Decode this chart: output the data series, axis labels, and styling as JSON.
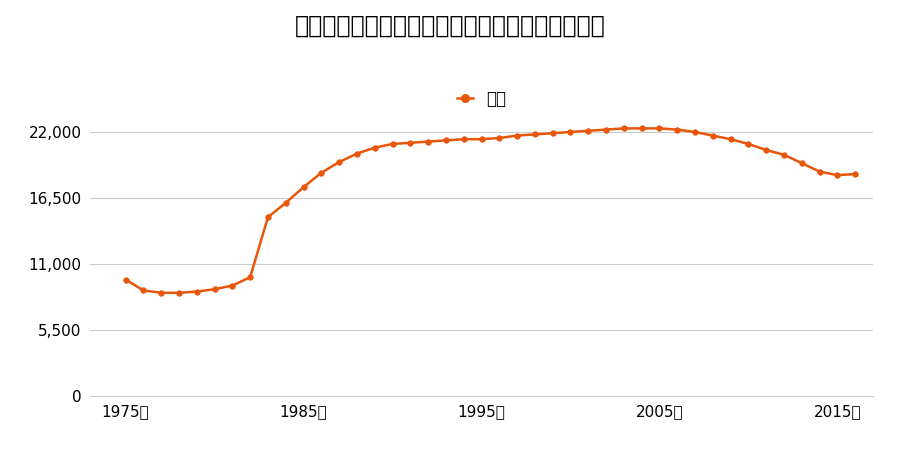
{
  "title": "岩手県遠野市早瀬町１丁目１６番３４の地価推移",
  "legend_label": "価格",
  "line_color": "#e8560a",
  "marker_color": "#e8560a",
  "background_color": "#ffffff",
  "grid_color": "#cccccc",
  "xlabel": "",
  "ylabel": "",
  "xlim": [
    1973,
    2017
  ],
  "ylim": [
    0,
    24750
  ],
  "yticks": [
    0,
    5500,
    11000,
    16500,
    22000
  ],
  "xticks": [
    1975,
    1985,
    1995,
    2005,
    2015
  ],
  "years": [
    1975,
    1976,
    1977,
    1978,
    1979,
    1980,
    1981,
    1982,
    1983,
    1984,
    1985,
    1986,
    1987,
    1988,
    1989,
    1990,
    1991,
    1992,
    1993,
    1994,
    1995,
    1996,
    1997,
    1998,
    1999,
    2000,
    2001,
    2002,
    2003,
    2004,
    2005,
    2006,
    2007,
    2008,
    2009,
    2010,
    2011,
    2012,
    2013,
    2014,
    2015,
    2016
  ],
  "values": [
    9700,
    8800,
    8600,
    8600,
    8700,
    8900,
    9200,
    9900,
    14900,
    16100,
    17400,
    18600,
    19500,
    20200,
    20700,
    21000,
    21100,
    21200,
    21300,
    21400,
    21400,
    21500,
    21700,
    21800,
    21900,
    22000,
    22100,
    22200,
    22300,
    22300,
    22300,
    22200,
    22000,
    21700,
    21400,
    21000,
    20500,
    20100,
    19400,
    18700,
    18400,
    18500
  ]
}
